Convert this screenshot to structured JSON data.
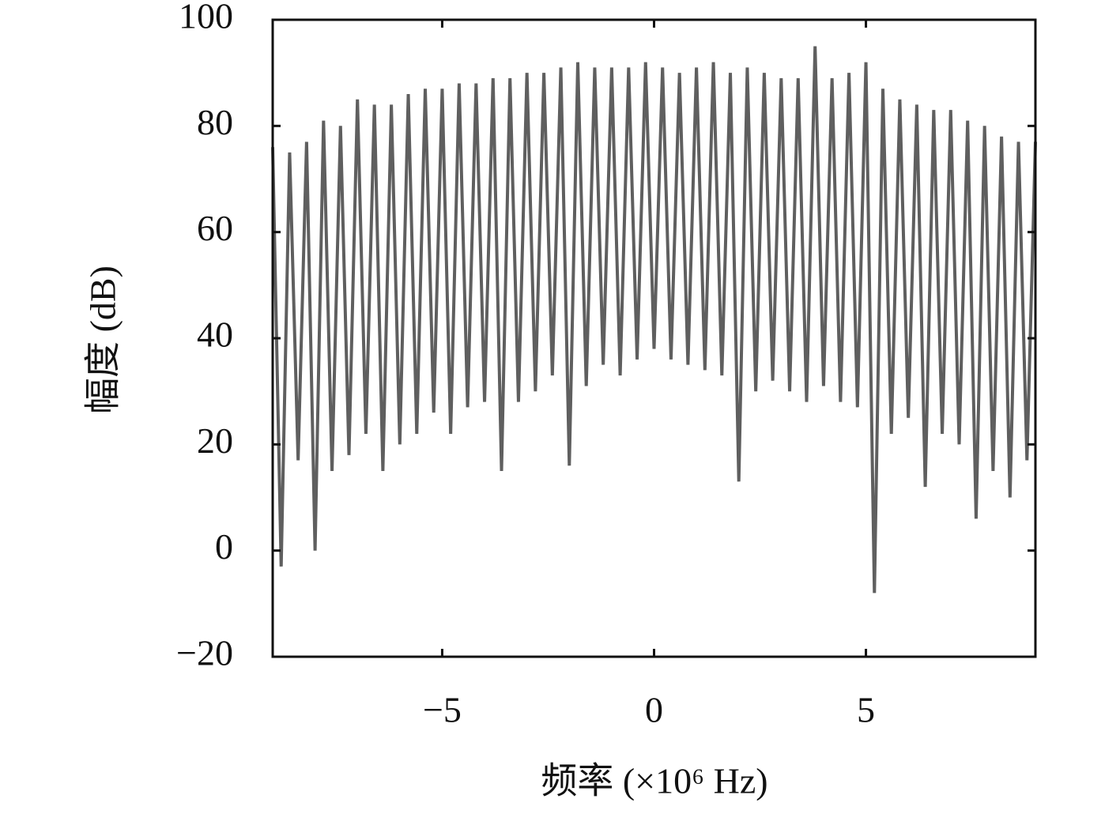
{
  "chart_data": {
    "type": "line",
    "xlabel": "频率 (×10⁶ Hz)",
    "ylabel": "幅度 (dB)",
    "x": [
      -9,
      -8.8,
      -8.6,
      -8.4,
      -8.2,
      -8,
      -7.8,
      -7.6,
      -7.4,
      -7.2,
      -7,
      -6.8,
      -6.6,
      -6.4,
      -6.2,
      -6,
      -5.8,
      -5.6,
      -5.4,
      -5.2,
      -5,
      -4.8,
      -4.6,
      -4.4,
      -4.2,
      -4,
      -3.8,
      -3.6,
      -3.4,
      -3.2,
      -3,
      -2.8,
      -2.6,
      -2.4,
      -2.2,
      -2,
      -1.8,
      -1.6,
      -1.4,
      -1.2,
      -1,
      -0.8,
      -0.6,
      -0.4,
      -0.2,
      0,
      0.2,
      0.4,
      0.6,
      0.8,
      1,
      1.2,
      1.4,
      1.6,
      1.8,
      2,
      2.2,
      2.4,
      2.6,
      2.8,
      3,
      3.2,
      3.4,
      3.6,
      3.8,
      4,
      4.2,
      4.4,
      4.6,
      4.8,
      5,
      5.2,
      5.4,
      5.6,
      5.8,
      6,
      6.2,
      6.4,
      6.6,
      6.8,
      7,
      7.2,
      7.4,
      7.6,
      7.8,
      8,
      8.2,
      8.4,
      8.6,
      8.8,
      9
    ],
    "values": [
      76,
      -3,
      75,
      17,
      77,
      0,
      81,
      15,
      80,
      18,
      85,
      22,
      84,
      15,
      84,
      20,
      86,
      22,
      87,
      26,
      87,
      22,
      88,
      27,
      88,
      28,
      89,
      15,
      89,
      28,
      90,
      30,
      90,
      33,
      91,
      16,
      92,
      31,
      91,
      35,
      91,
      33,
      91,
      36,
      92,
      38,
      91,
      36,
      90,
      35,
      91,
      34,
      92,
      33,
      90,
      13,
      91,
      30,
      90,
      32,
      89,
      30,
      89,
      28,
      95,
      31,
      89,
      28,
      90,
      27,
      92,
      -8,
      87,
      22,
      85,
      25,
      84,
      12,
      83,
      22,
      83,
      20,
      81,
      6,
      80,
      15,
      78,
      10,
      77,
      17,
      77
    ],
    "color": "#5f5f5f",
    "xlim": [
      -9,
      9
    ],
    "ylim": [
      -20,
      100
    ],
    "xticks": [
      {
        "value": -5,
        "label": "−5"
      },
      0,
      5
    ],
    "yticks": [
      {
        "value": -20,
        "label": "−20"
      },
      0,
      20,
      40,
      60,
      80,
      100
    ]
  }
}
